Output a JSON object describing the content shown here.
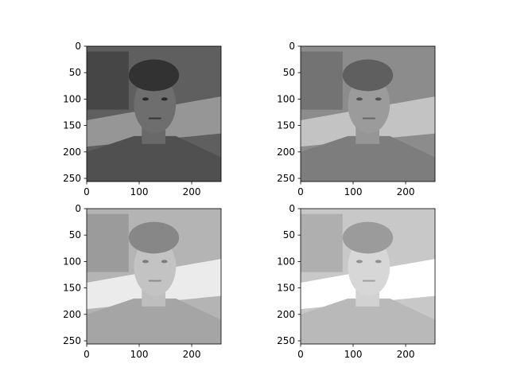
{
  "figure": {
    "layout": "2x2 grid of grayscale image panels",
    "panels": [
      {
        "id": "top-left",
        "description": "grayscale portrait photo, original contrast (darkest)",
        "shade": "#5f5f5f",
        "x_ticks": [
          "0",
          "100",
          "200"
        ],
        "y_ticks": [
          "0",
          "50",
          "100",
          "150",
          "200",
          "250"
        ]
      },
      {
        "id": "top-right",
        "description": "grayscale portrait photo, low contrast (washed gray)",
        "shade": "#8c8c8c",
        "x_ticks": [
          "0",
          "100",
          "200"
        ],
        "y_ticks": [
          "0",
          "50",
          "100",
          "150",
          "200",
          "250"
        ]
      },
      {
        "id": "bottom-left",
        "description": "grayscale portrait photo, brightened",
        "shade": "#b4b4b4",
        "x_ticks": [
          "0",
          "100",
          "200"
        ],
        "y_ticks": [
          "0",
          "50",
          "100",
          "150",
          "200",
          "250"
        ]
      },
      {
        "id": "bottom-right",
        "description": "grayscale portrait photo, high-contrast brightened",
        "shade": "#c8c8c8",
        "x_ticks": [
          "0",
          "100",
          "200"
        ],
        "y_ticks": [
          "0",
          "50",
          "100",
          "150",
          "200",
          "250"
        ]
      }
    ]
  }
}
